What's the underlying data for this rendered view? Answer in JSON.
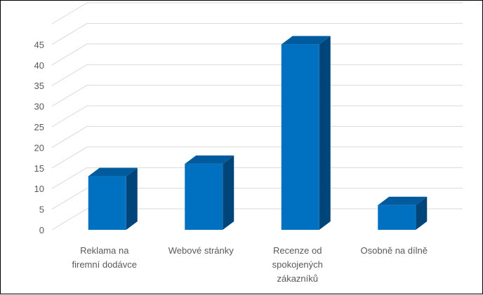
{
  "chart_data": {
    "type": "bar",
    "style": "3d-column",
    "categories": [
      [
        "Reklama na",
        "firemní dodávce"
      ],
      [
        "Webové stránky"
      ],
      [
        "Recenze od",
        "spokojených",
        "zákazníků"
      ],
      [
        "Osobně na dílně"
      ]
    ],
    "values": [
      13,
      16,
      45,
      6
    ],
    "ylim": [
      0,
      50
    ],
    "yticks": [
      0,
      5,
      10,
      15,
      20,
      25,
      30,
      35,
      40,
      45
    ],
    "grid": true,
    "legend": "none",
    "colors": {
      "bar_front": "#0070C0",
      "bar_side": "#00457A",
      "bar_top": "#005A9E",
      "grid": "#D9D9D9",
      "text": "#595959"
    }
  }
}
